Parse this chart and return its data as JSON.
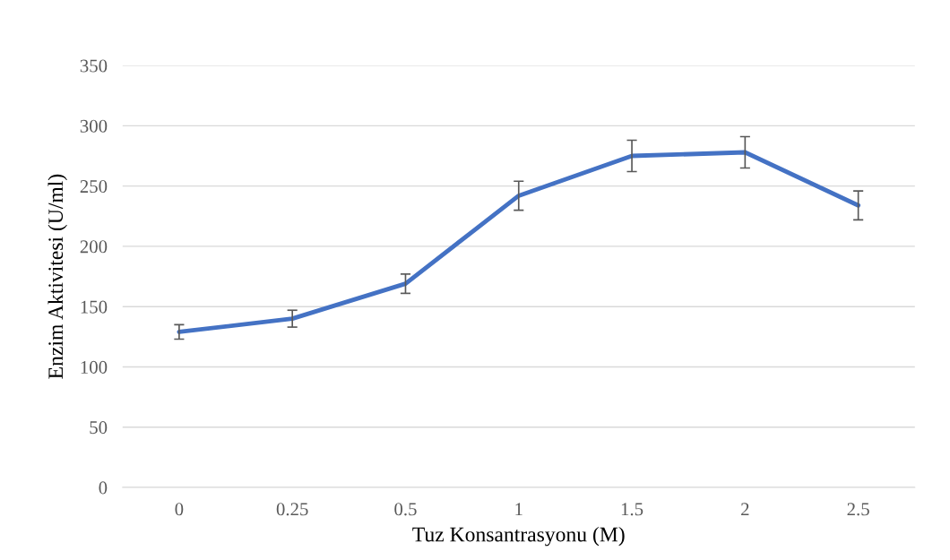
{
  "chart_data": {
    "type": "line",
    "xlabel": "Tuz Konsantrasyonu (M)",
    "ylabel": "Enzim Aktivitesi (U/ml)",
    "categories": [
      "0",
      "0.25",
      "0.5",
      "1",
      "1.5",
      "2",
      "2.5"
    ],
    "series": [
      {
        "color": "#4472c4",
        "values": [
          129,
          140,
          169,
          242,
          275,
          278,
          234
        ],
        "errors": [
          6,
          7,
          8,
          12,
          13,
          13,
          12
        ]
      }
    ],
    "ylim": [
      0,
      350
    ],
    "yticks": [
      0,
      50,
      100,
      150,
      200,
      250,
      300,
      350
    ],
    "grid": "y",
    "marker": "none",
    "line_style": "solid"
  }
}
